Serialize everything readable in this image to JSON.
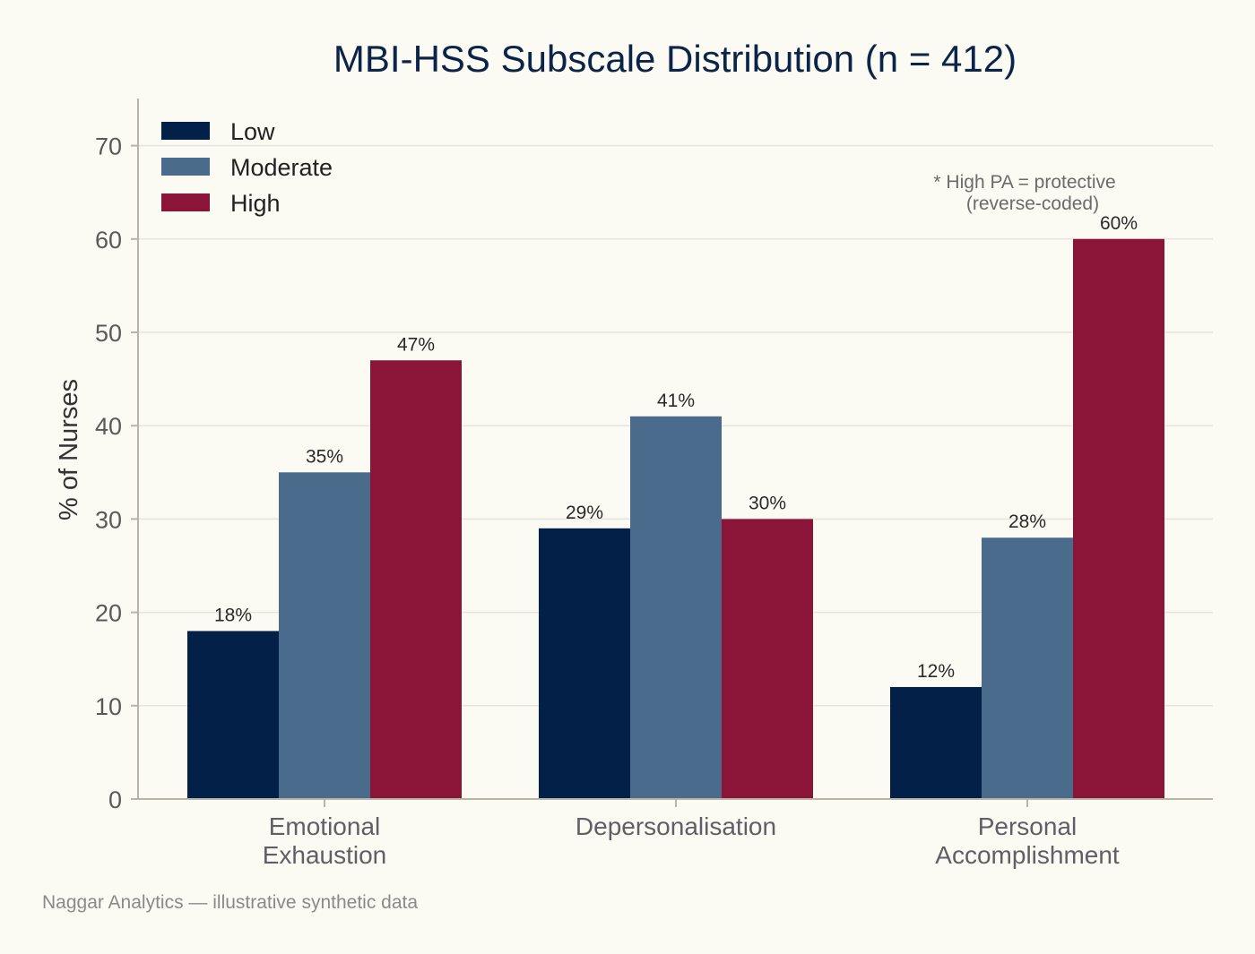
{
  "chart_data": {
    "type": "bar",
    "title": "MBI-HSS Subscale Distribution  (n = 412)",
    "xlabel": "",
    "ylabel": "% of Nurses",
    "ylim": [
      0,
      75
    ],
    "yticks": [
      "0",
      "10",
      "20",
      "30",
      "40",
      "50",
      "60",
      "70"
    ],
    "categories": [
      [
        "Emotional",
        "Exhaustion"
      ],
      [
        "Depersonalisation"
      ],
      [
        "Personal",
        "Accomplishment"
      ]
    ],
    "series": [
      {
        "name": "Low",
        "color": "#032148",
        "values": [
          18,
          29,
          12
        ],
        "labels": [
          "18%",
          "29%",
          "12%"
        ]
      },
      {
        "name": "Moderate",
        "color": "#4a6b8c",
        "values": [
          35,
          41,
          28
        ],
        "labels": [
          "35%",
          "41%",
          "28%"
        ]
      },
      {
        "name": "High",
        "color": "#8a1538",
        "values": [
          47,
          30,
          60
        ],
        "labels": [
          "47%",
          "30%",
          "60%"
        ]
      }
    ],
    "grid": true,
    "legend_position": "top-left",
    "annotation": [
      "* High PA = protective",
      "(reverse-coded)"
    ],
    "footer": "Naggar Analytics — illustrative synthetic data"
  },
  "colors": {
    "background": "#fbfaf3",
    "grid": "#e6e4dc",
    "axis": "#b8b5a8",
    "title": "#0b2447"
  }
}
